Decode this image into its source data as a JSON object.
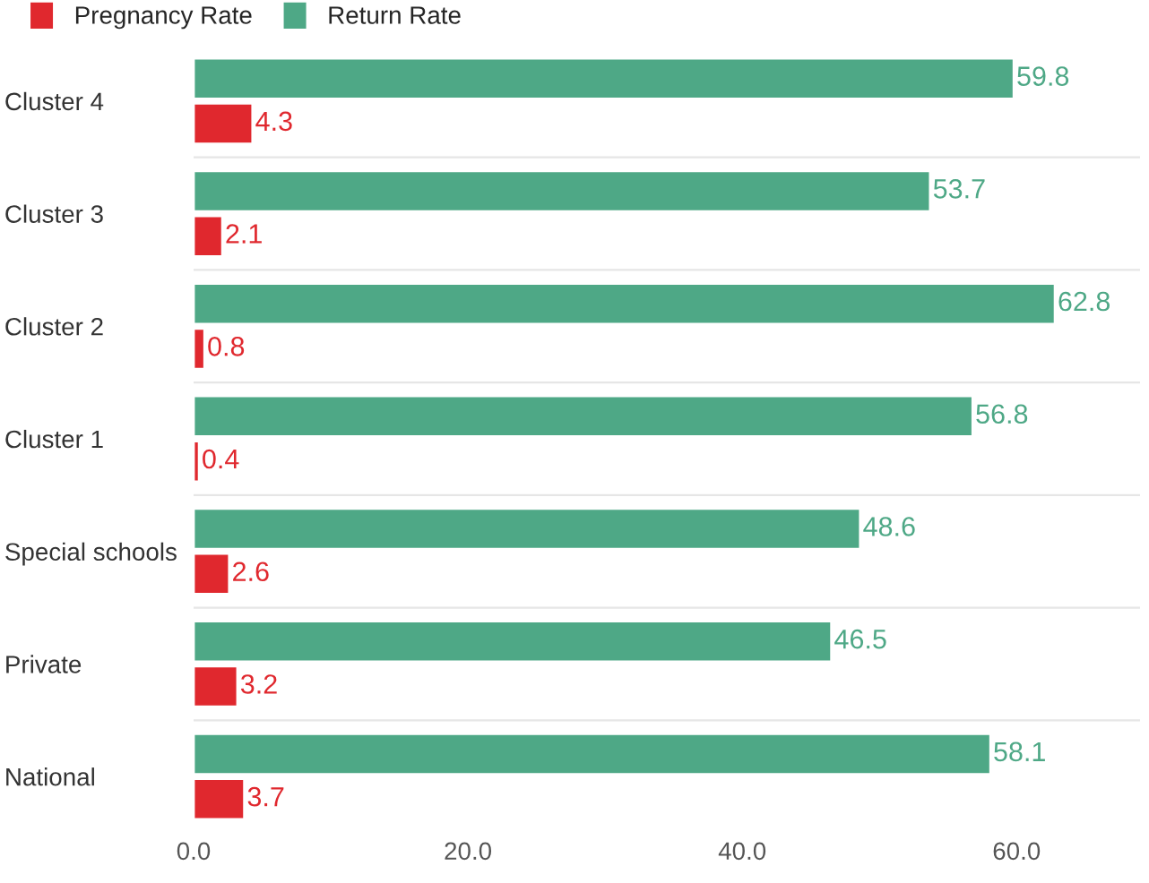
{
  "chart_data": {
    "type": "bar",
    "orientation": "horizontal",
    "categories": [
      "Cluster 4",
      "Cluster 3",
      "Cluster 2",
      "Cluster 1",
      "Special schools",
      "Private",
      "National"
    ],
    "series": [
      {
        "name": "Pregnancy Rate",
        "color": "#e0282e",
        "values": [
          4.3,
          2.1,
          0.8,
          0.4,
          2.6,
          3.2,
          3.7
        ]
      },
      {
        "name": "Return Rate",
        "color": "#4ea886",
        "values": [
          59.8,
          53.7,
          62.8,
          56.8,
          48.6,
          46.5,
          58.1
        ]
      }
    ],
    "xlim": [
      0,
      69
    ],
    "xticks": [
      {
        "value": 0,
        "label": "0.0"
      },
      {
        "value": 20,
        "label": "20.0"
      },
      {
        "value": 40,
        "label": "40.0"
      },
      {
        "value": 60,
        "label": "60.0"
      }
    ],
    "data_labels": true,
    "grid": "y",
    "legend": "top left"
  }
}
